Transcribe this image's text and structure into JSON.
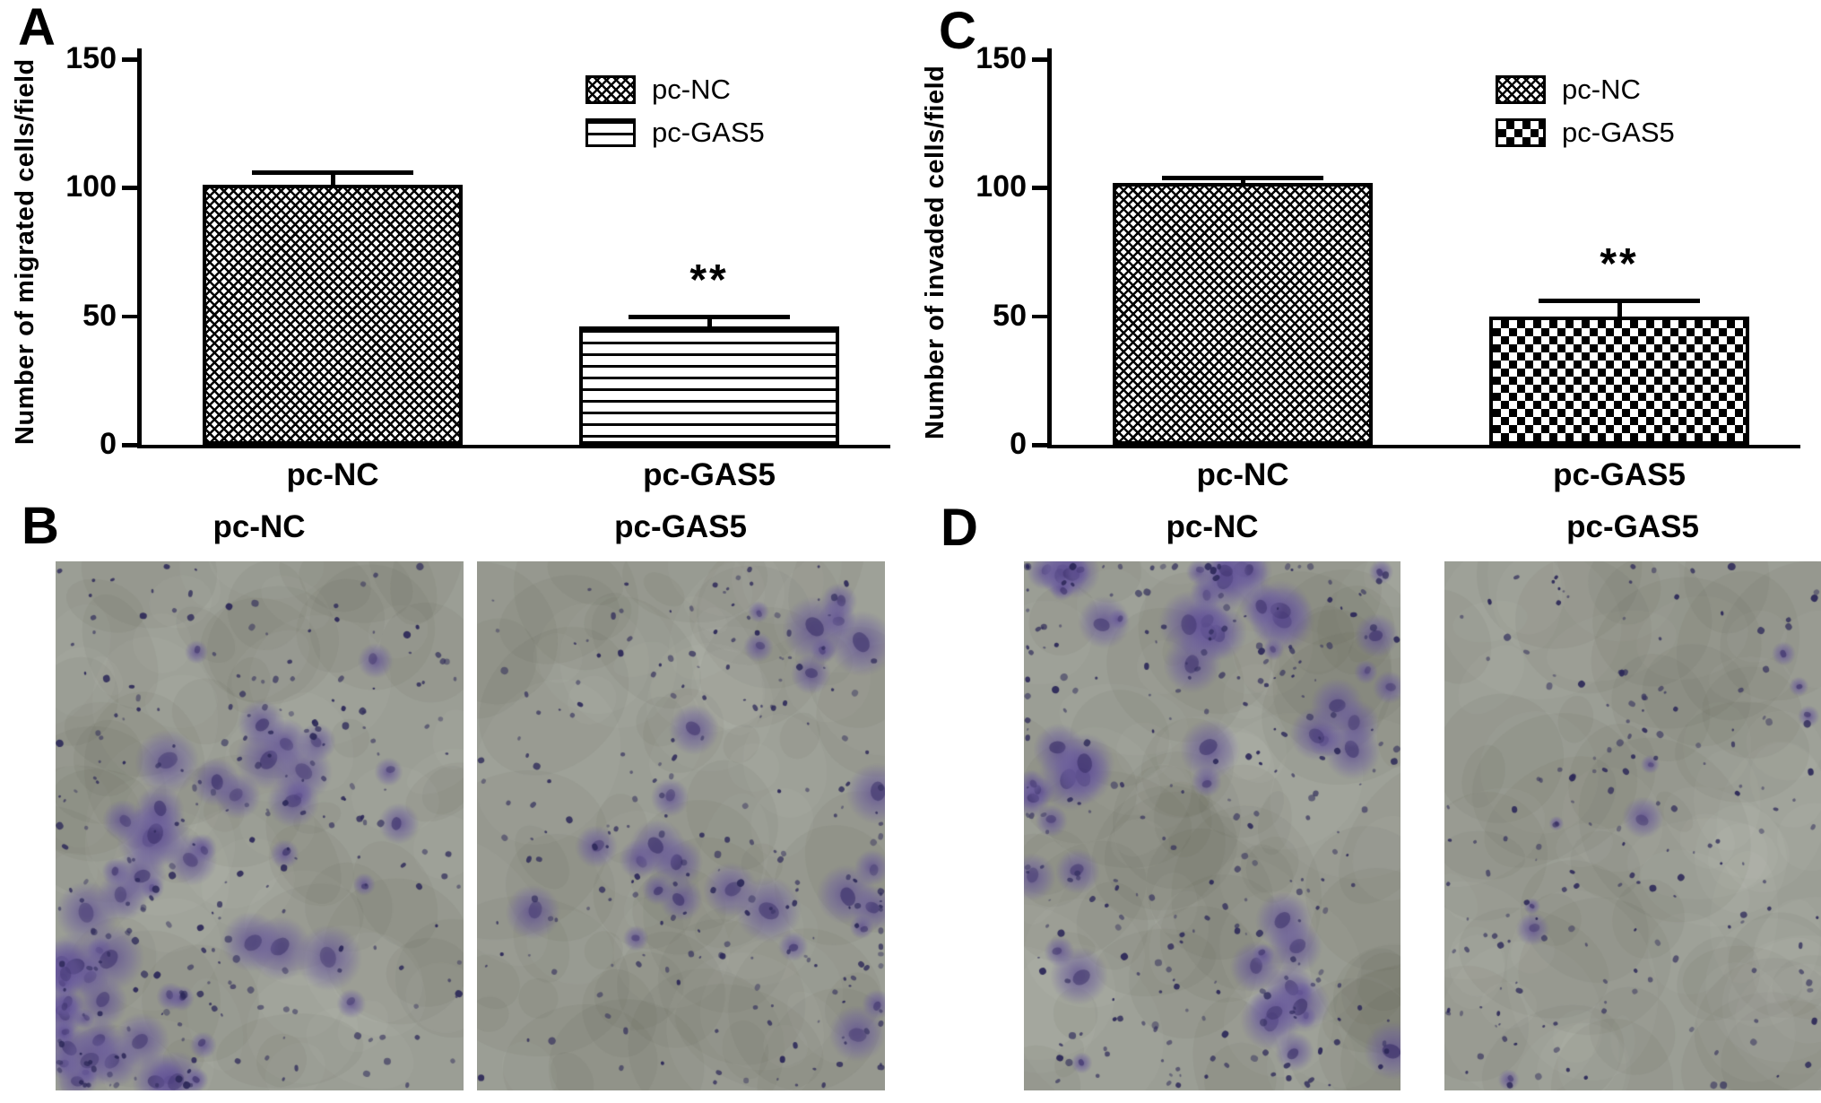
{
  "panels": [
    {
      "letter": "A"
    },
    {
      "letter": "B"
    },
    {
      "letter": "C"
    },
    {
      "letter": "D"
    }
  ],
  "chart_data": [
    {
      "type": "bar",
      "panel": "A",
      "title": "",
      "xlabel": "",
      "ylabel": "Number of migrated cells/field",
      "categories": [
        "pc-NC",
        "pc-GAS5"
      ],
      "values": [
        101,
        46
      ],
      "errors": [
        5,
        4
      ],
      "significance": [
        "",
        "**"
      ],
      "patterns": [
        "weave",
        "hlines"
      ],
      "ylim": [
        0,
        150
      ],
      "yticks": [
        0,
        50,
        100,
        150
      ],
      "grid": false,
      "legend_position": "top-right",
      "legend": [
        {
          "label": "pc-NC",
          "pattern": "weave"
        },
        {
          "label": "pc-GAS5",
          "pattern": "hlines"
        }
      ]
    },
    {
      "type": "bar",
      "panel": "C",
      "title": "",
      "xlabel": "",
      "ylabel": "Number of invaded cells/field",
      "categories": [
        "pc-NC",
        "pc-GAS5"
      ],
      "values": [
        102,
        50
      ],
      "errors": [
        2,
        6
      ],
      "significance": [
        "",
        "**"
      ],
      "patterns": [
        "weave",
        "checker"
      ],
      "ylim": [
        0,
        150
      ],
      "yticks": [
        0,
        50,
        100,
        150
      ],
      "grid": false,
      "legend_position": "top-right",
      "legend": [
        {
          "label": "pc-NC",
          "pattern": "weave"
        },
        {
          "label": "pc-GAS5",
          "pattern": "checker"
        }
      ]
    }
  ],
  "micrographs": [
    {
      "panel": "B",
      "images": [
        {
          "label": "pc-NC",
          "stain_density": "high",
          "bias": "bottom-left",
          "seed": 101
        },
        {
          "label": "pc-GAS5",
          "stain_density": "medium",
          "bias": "top-right",
          "seed": 202
        }
      ]
    },
    {
      "panel": "D",
      "images": [
        {
          "label": "pc-NC",
          "stain_density": "high",
          "bias": "top-left",
          "seed": 303
        },
        {
          "label": "pc-GAS5",
          "stain_density": "low",
          "bias": "even",
          "seed": 404
        }
      ]
    }
  ],
  "colors": {
    "background": "#ffffff",
    "axis": "#000000",
    "bar_fill": "#ffffff",
    "bar_stroke": "#000000",
    "micro_bg": "#9b9e95",
    "stain": "#6b5a9e",
    "nucleus": "#2c2858"
  }
}
